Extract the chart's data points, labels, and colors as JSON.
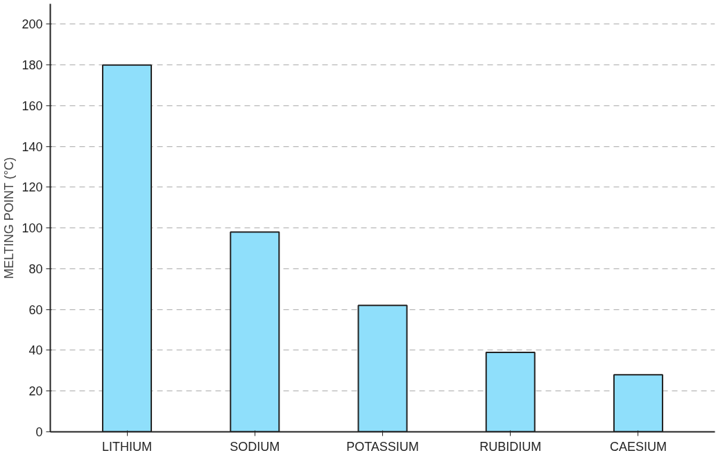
{
  "chart_data": {
    "type": "bar",
    "ylabel": "MELTING POINT (°C)",
    "categories": [
      "LITHIUM",
      "SODIUM",
      "POTASSIUM",
      "RUBIDIUM",
      "CAESIUM"
    ],
    "values": [
      180,
      98,
      62,
      39,
      28
    ],
    "color": "#8fdffb",
    "ylim": [
      0,
      210
    ],
    "yticks": [
      0,
      20,
      40,
      60,
      80,
      100,
      120,
      140,
      160,
      180,
      200
    ],
    "grid": "y"
  }
}
